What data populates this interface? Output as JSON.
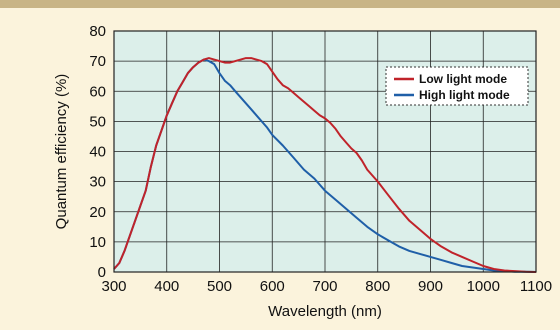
{
  "chart_data": {
    "type": "line",
    "xlabel": "Wavelength (nm)",
    "ylabel": "Quantum efficiency (%)",
    "xlim": [
      300,
      1100
    ],
    "ylim": [
      0,
      80
    ],
    "x_ticks": [
      300,
      400,
      500,
      600,
      700,
      800,
      900,
      1000,
      1100
    ],
    "y_ticks": [
      0,
      10,
      20,
      30,
      40,
      50,
      60,
      70,
      80
    ],
    "grid": true,
    "legend_position": "top-right",
    "colors": {
      "plot_background": "#dcefea",
      "grid": "#222222",
      "page_background": "#fbf3dc"
    },
    "series": [
      {
        "name": "Low light mode",
        "color": "#c0232a",
        "x": [
          300,
          310,
          320,
          330,
          340,
          350,
          360,
          370,
          380,
          390,
          400,
          410,
          420,
          430,
          440,
          450,
          460,
          470,
          480,
          490,
          500,
          510,
          520,
          530,
          540,
          550,
          560,
          570,
          580,
          590,
          600,
          610,
          620,
          630,
          640,
          650,
          660,
          670,
          680,
          690,
          700,
          710,
          720,
          730,
          740,
          750,
          760,
          770,
          780,
          790,
          800,
          820,
          840,
          860,
          880,
          900,
          920,
          940,
          960,
          980,
          1000,
          1020,
          1040,
          1060,
          1080,
          1100
        ],
        "values": [
          1,
          3,
          7,
          12,
          17,
          22,
          27,
          35,
          42,
          47,
          52,
          56,
          60,
          63,
          66,
          68,
          69.5,
          70.5,
          71,
          70.5,
          70,
          69.5,
          69.5,
          70,
          70.5,
          71,
          71,
          70.5,
          70,
          69,
          66.5,
          64,
          62,
          61,
          59.5,
          58,
          56.5,
          55,
          53.5,
          52,
          51,
          49.5,
          47.5,
          45,
          43,
          41,
          39.5,
          37,
          34,
          32,
          30,
          25.5,
          21,
          17,
          14,
          11,
          8.5,
          6.5,
          5,
          3.5,
          2,
          1,
          0.5,
          0.3,
          0.1,
          0
        ],
        "label_on_chart": ""
      },
      {
        "name": "High light mode",
        "color": "#1f5fa8",
        "x": [
          300,
          310,
          320,
          330,
          340,
          350,
          360,
          370,
          380,
          390,
          400,
          410,
          420,
          430,
          440,
          450,
          460,
          470,
          480,
          490,
          500,
          510,
          520,
          530,
          540,
          550,
          560,
          570,
          580,
          590,
          600,
          620,
          640,
          660,
          680,
          700,
          720,
          740,
          760,
          780,
          800,
          820,
          840,
          860,
          880,
          900,
          920,
          940,
          960,
          980,
          1000,
          1020,
          1040,
          1060,
          1080,
          1100
        ],
        "values": [
          1,
          3,
          7,
          12,
          17,
          22,
          27,
          35,
          42,
          47,
          52,
          56,
          60,
          63,
          66,
          68,
          69.5,
          70.5,
          70,
          69,
          66,
          63.5,
          62,
          60,
          58,
          56,
          54,
          52,
          50,
          48,
          45.5,
          42,
          38,
          34,
          31,
          27,
          24,
          21,
          18,
          15,
          12.5,
          10.5,
          8.5,
          7,
          6,
          5,
          4,
          3,
          2,
          1.5,
          1,
          0.5,
          0.3,
          0.1,
          0.05,
          0
        ]
      }
    ],
    "legend": [
      "Low light mode",
      "High light mode"
    ]
  }
}
